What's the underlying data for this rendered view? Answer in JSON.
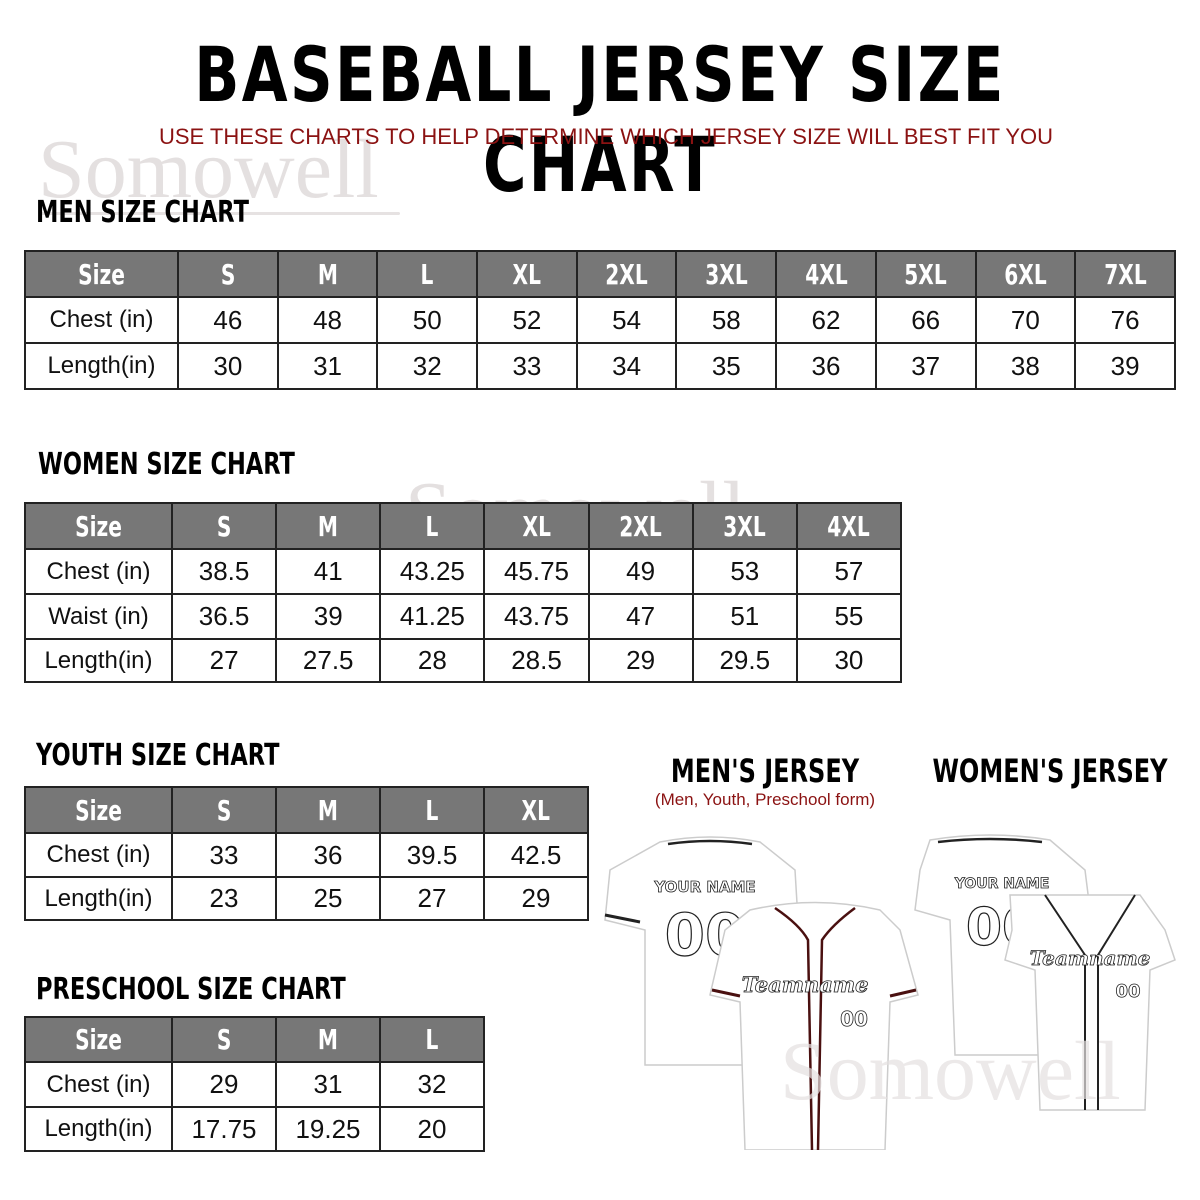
{
  "header": {
    "title": "BASEBALL JERSEY SIZE CHART",
    "subtitle": "USE THESE CHARTS TO HELP DETERMINE WHICH JERSEY SIZE WILL BEST FIT YOU"
  },
  "watermark": "Somowell",
  "colors": {
    "header_gray": "#777777",
    "accent_red": "#8b1212"
  },
  "men": {
    "title": "MEN SIZE CHART",
    "header": [
      "Size",
      "S",
      "M",
      "L",
      "XL",
      "2XL",
      "3XL",
      "4XL",
      "5XL",
      "6XL",
      "7XL"
    ],
    "rows": [
      [
        "Chest (in)",
        "46",
        "48",
        "50",
        "52",
        "54",
        "58",
        "62",
        "66",
        "70",
        "76"
      ],
      [
        "Length(in)",
        "30",
        "31",
        "32",
        "33",
        "34",
        "35",
        "36",
        "37",
        "38",
        "39"
      ]
    ]
  },
  "women": {
    "title": "WOMEN SIZE CHART",
    "header": [
      "Size",
      "S",
      "M",
      "L",
      "XL",
      "2XL",
      "3XL",
      "4XL"
    ],
    "rows": [
      [
        "Chest (in)",
        "38.5",
        "41",
        "43.25",
        "45.75",
        "49",
        "53",
        "57"
      ],
      [
        "Waist (in)",
        "36.5",
        "39",
        "41.25",
        "43.75",
        "47",
        "51",
        "55"
      ],
      [
        "Length(in)",
        "27",
        "27.5",
        "28",
        "28.5",
        "29",
        "29.5",
        "30"
      ]
    ]
  },
  "youth": {
    "title": "YOUTH SIZE CHART",
    "header": [
      "Size",
      "S",
      "M",
      "L",
      "XL"
    ],
    "rows": [
      [
        "Chest (in)",
        "33",
        "36",
        "39.5",
        "42.5"
      ],
      [
        "Length(in)",
        "23",
        "25",
        "27",
        "29"
      ]
    ]
  },
  "preschool": {
    "title": "PRESCHOOL SIZE CHART",
    "header": [
      "Size",
      "S",
      "M",
      "L"
    ],
    "rows": [
      [
        "Chest (in)",
        "29",
        "31",
        "32"
      ],
      [
        "Length(in)",
        "17.75",
        "19.25",
        "20"
      ]
    ]
  },
  "jerseys": {
    "men_title": "MEN'S JERSEY",
    "men_subtitle": "(Men, Youth, Preschool form)",
    "women_title": "WOMEN'S JERSEY",
    "name_text": "YOUR NAME",
    "number_text": "00",
    "team_text": "Teamname"
  }
}
